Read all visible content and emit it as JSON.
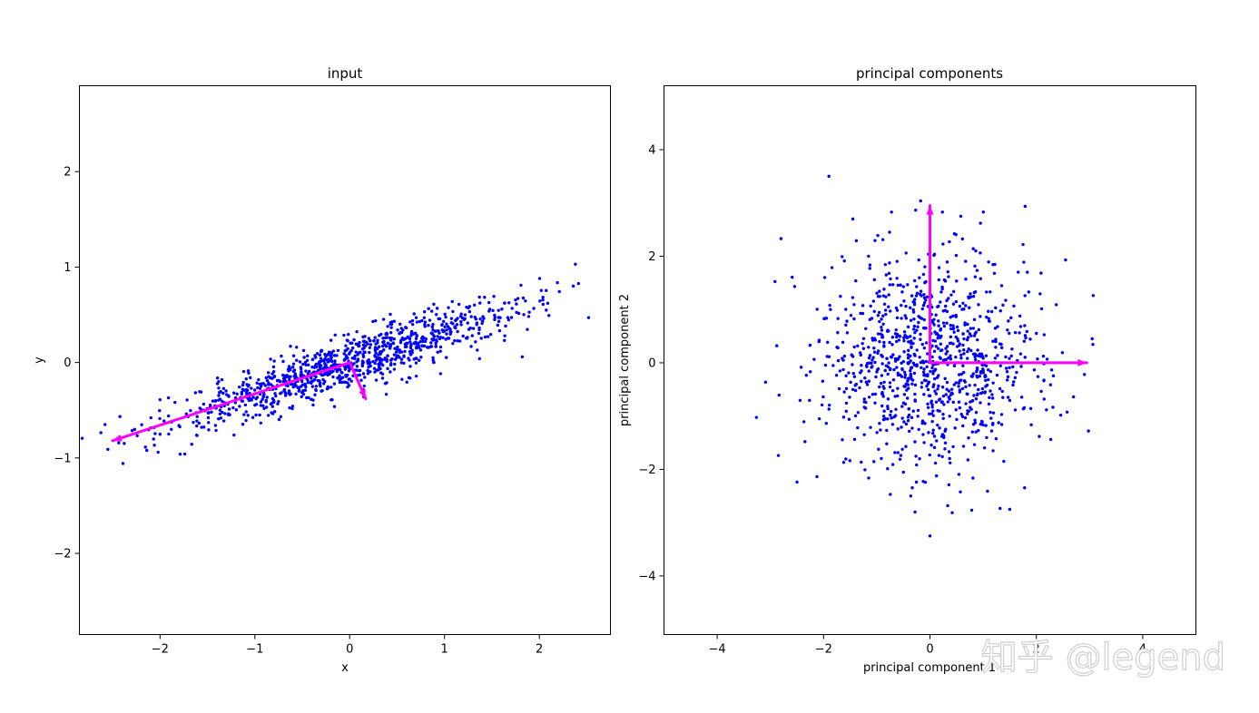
{
  "chart_data": [
    {
      "type": "scatter",
      "title": "input",
      "xlabel": "x",
      "ylabel": "y",
      "xlim": [
        -2.85,
        2.75
      ],
      "ylim": [
        -2.85,
        2.9
      ],
      "xticks": [
        -2,
        -1,
        0,
        1,
        2
      ],
      "yticks": [
        -2,
        -1,
        0,
        1,
        2
      ],
      "xtick_labels": [
        "−2",
        "−1",
        "0",
        "1",
        "2"
      ],
      "ytick_labels": [
        "−2",
        "−1",
        "0",
        "1",
        "2"
      ],
      "grid": false,
      "point_color": "#0000ff",
      "arrow_color": "#ff00ff",
      "n_points": 1000,
      "distribution": {
        "mean": [
          0,
          0
        ],
        "component1": {
          "direction": [
            0.95,
            0.31
          ],
          "std": 1.0
        },
        "component2": {
          "direction": [
            -0.31,
            0.95
          ],
          "std": 0.13
        }
      },
      "arrows": [
        {
          "from": [
            0,
            0
          ],
          "to": [
            -2.5,
            -0.82
          ]
        },
        {
          "from": [
            0,
            0
          ],
          "to": [
            0.17,
            -0.38
          ]
        }
      ],
      "sample_points": [
        [
          2.38,
          1.03
        ],
        [
          2.52,
          0.47
        ],
        [
          -2.58,
          -0.65
        ],
        [
          -2.55,
          -0.91
        ],
        [
          -2.02,
          -0.94
        ],
        [
          1.82,
          0.06
        ],
        [
          1.37,
          0.04
        ],
        [
          -0.56,
          0.16
        ],
        [
          -1.22,
          -0.76
        ],
        [
          -2.0,
          -0.39
        ]
      ]
    },
    {
      "type": "scatter",
      "title": "principal components",
      "xlabel": "principal component 1",
      "ylabel": "principal component 2",
      "xlim": [
        -5.0,
        5.0
      ],
      "ylim": [
        -5.1,
        5.2
      ],
      "xticks": [
        -4,
        -2,
        0,
        2,
        4
      ],
      "yticks": [
        -4,
        -2,
        0,
        2,
        4
      ],
      "xtick_labels": [
        "−4",
        "−2",
        "0",
        "2",
        "4"
      ],
      "ytick_labels": [
        "−4",
        "−2",
        "0",
        "2",
        "4"
      ],
      "grid": false,
      "point_color": "#0000ff",
      "arrow_color": "#ff00ff",
      "n_points": 1000,
      "distribution": {
        "mean": [
          0,
          0
        ],
        "std": [
          1.0,
          1.0
        ]
      },
      "arrows": [
        {
          "from": [
            0,
            0
          ],
          "to": [
            2.95,
            0
          ]
        },
        {
          "from": [
            0,
            0
          ],
          "to": [
            0,
            2.95
          ]
        }
      ],
      "sample_points": [
        [
          -1.9,
          3.5
        ],
        [
          -2.8,
          2.33
        ],
        [
          -1.45,
          2.7
        ],
        [
          0.58,
          2.75
        ],
        [
          0.95,
          2.62
        ],
        [
          3.05,
          0.45
        ],
        [
          2.98,
          -1.28
        ],
        [
          -2.85,
          -1.74
        ],
        [
          -2.35,
          -1.48
        ],
        [
          0.0,
          -3.25
        ],
        [
          -0.28,
          -2.8
        ],
        [
          1.5,
          -2.75
        ],
        [
          1.75,
          2.22
        ],
        [
          2.55,
          1.93
        ]
      ]
    }
  ],
  "watermark": "知乎 @legend"
}
